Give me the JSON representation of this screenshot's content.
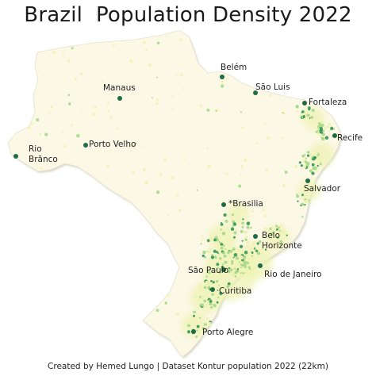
{
  "title": "Brazil  Population Density 2022",
  "credit": "Created by Hemed Lungo | Dataset Kontur population 2022 (22km)",
  "colors": {
    "land": "#fbf8e6",
    "coast_shadow": "#d9d6c8",
    "low_density": "#eef3b4",
    "mid_density": "#a9d88a",
    "high_density": "#3e9a5c",
    "top_density": "#1f6b45"
  },
  "cities": [
    {
      "id": "manaus",
      "label_lines": [
        "Manaus"
      ]
    },
    {
      "id": "belem",
      "label_lines": [
        "Belém"
      ]
    },
    {
      "id": "sao-luis",
      "label_lines": [
        "São Luis"
      ]
    },
    {
      "id": "fortaleza",
      "label_lines": [
        "Fortaleza"
      ]
    },
    {
      "id": "recife",
      "label_lines": [
        "Recife"
      ]
    },
    {
      "id": "porto-velho",
      "label_lines": [
        "Porto Velho"
      ]
    },
    {
      "id": "rio-branco",
      "label_lines": [
        "Rio",
        "Brãnco"
      ]
    },
    {
      "id": "salvador",
      "label_lines": [
        "Salvador"
      ]
    },
    {
      "id": "brasilia",
      "label_lines": [
        "*Brasilia"
      ]
    },
    {
      "id": "belo-horizonte",
      "label_lines": [
        "Belo",
        "Horizonte"
      ]
    },
    {
      "id": "sao-paulo",
      "label_lines": [
        "São Paulo"
      ]
    },
    {
      "id": "rio-de-janeiro",
      "label_lines": [
        "Rio de Janeiro"
      ]
    },
    {
      "id": "curitiba",
      "label_lines": [
        "Curitiba"
      ]
    },
    {
      "id": "porto-alegre",
      "label_lines": [
        "Porto Alegre"
      ]
    }
  ]
}
